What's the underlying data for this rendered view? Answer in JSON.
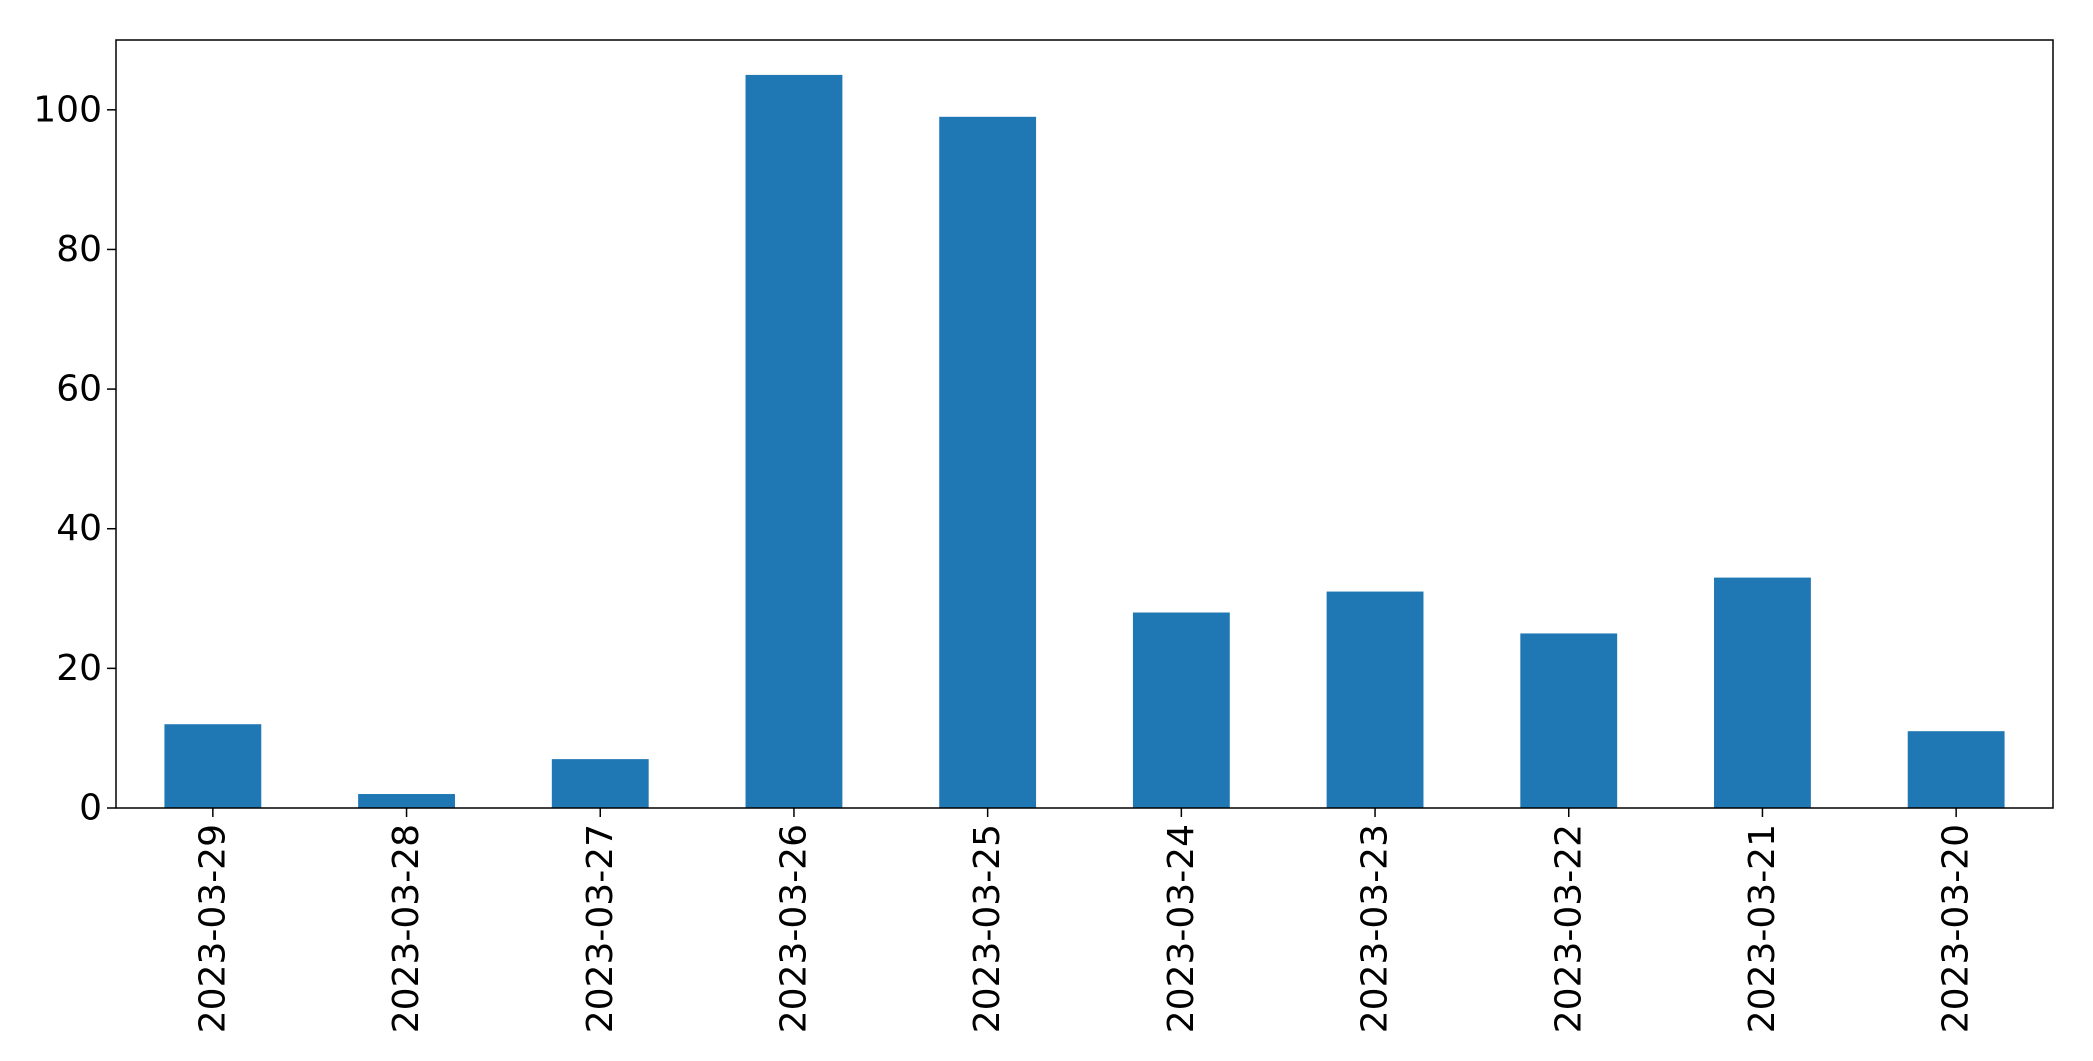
{
  "chart_data": {
    "type": "bar",
    "title": "",
    "xlabel": "",
    "ylabel": "",
    "categories": [
      "2023-03-29",
      "2023-03-28",
      "2023-03-27",
      "2023-03-26",
      "2023-03-25",
      "2023-03-24",
      "2023-03-23",
      "2023-03-22",
      "2023-03-21",
      "2023-03-20"
    ],
    "values": [
      12,
      2,
      7,
      105,
      99,
      28,
      31,
      25,
      33,
      11
    ],
    "ylim": [
      0,
      110
    ],
    "yticks": [
      0,
      20,
      40,
      60,
      80,
      100
    ],
    "grid": false,
    "legend": "none",
    "bar_color": "#1f77b4"
  }
}
